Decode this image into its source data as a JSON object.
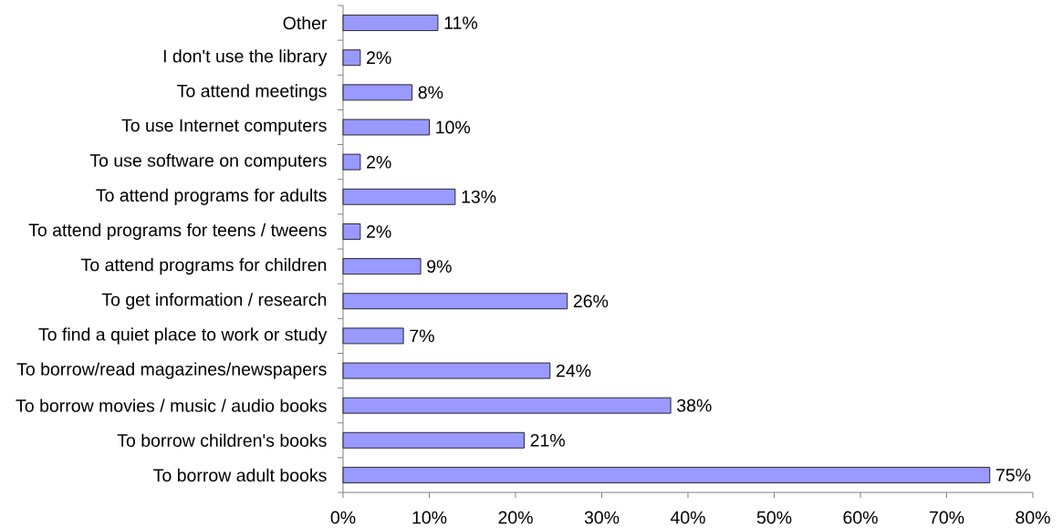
{
  "chart_data": {
    "type": "bar",
    "orientation": "horizontal",
    "color": "#9999ff",
    "categories": [
      "Other",
      "I don't use the library",
      "To attend meetings",
      "To use Internet computers",
      "To use software on computers",
      "To attend programs for adults",
      "To attend programs for teens / tweens",
      "To attend programs for children",
      "To get information / research",
      "To find a quiet place to work or study",
      "To borrow/read magazines/newspapers",
      "To borrow movies / music / audio books",
      "To borrow children's books",
      "To borrow adult books"
    ],
    "values": [
      11,
      2,
      8,
      10,
      2,
      13,
      2,
      9,
      26,
      7,
      24,
      38,
      21,
      75
    ],
    "value_labels": [
      "11%",
      "2%",
      "8%",
      "10%",
      "2%",
      "13%",
      "2%",
      "9%",
      "26%",
      "7%",
      "24%",
      "38%",
      "21%",
      "75%"
    ],
    "xlim": [
      0,
      80
    ],
    "xticks": [
      {
        "value": 0,
        "label": "0%"
      },
      {
        "value": 10,
        "label": "10%"
      },
      {
        "value": 20,
        "label": "20%"
      },
      {
        "value": 30,
        "label": "30%"
      },
      {
        "value": 40,
        "label": "40%"
      },
      {
        "value": 50,
        "label": "50%"
      },
      {
        "value": 60,
        "label": "60%"
      },
      {
        "value": 70,
        "label": "70%"
      },
      {
        "value": 80,
        "label": "80%"
      }
    ]
  }
}
